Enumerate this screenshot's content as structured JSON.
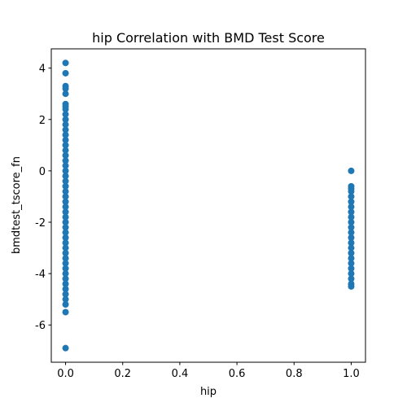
{
  "chart_data": {
    "type": "scatter",
    "title": "hip Correlation with BMD Test Score",
    "xlabel": "hip",
    "ylabel": "bmdtest_tscore_fn",
    "color": "#1f77b4",
    "x": [
      0,
      0,
      0,
      0,
      0,
      0,
      0,
      0,
      0,
      0,
      0,
      0,
      0,
      0,
      0,
      0,
      0,
      0,
      0,
      0,
      0,
      0,
      0,
      0,
      0,
      0,
      0,
      0,
      0,
      0,
      0,
      0,
      0,
      0,
      0,
      0,
      0,
      0,
      0,
      0,
      0,
      0,
      0,
      0,
      0,
      0,
      0,
      0,
      1,
      1,
      1,
      1,
      1,
      1,
      1,
      1,
      1,
      1,
      1,
      1,
      1,
      1,
      1,
      1,
      1,
      1,
      1,
      1,
      1,
      1,
      1
    ],
    "values": [
      4.2,
      3.8,
      3.3,
      3.2,
      3.0,
      2.6,
      2.5,
      2.4,
      2.2,
      2.0,
      1.8,
      1.6,
      1.4,
      1.2,
      1.0,
      0.8,
      0.6,
      0.4,
      0.2,
      0.0,
      -0.2,
      -0.4,
      -0.6,
      -0.8,
      -1.0,
      -1.2,
      -1.4,
      -1.6,
      -1.8,
      -2.0,
      -2.2,
      -2.4,
      -2.6,
      -2.8,
      -3.0,
      -3.2,
      -3.4,
      -3.6,
      -3.8,
      -4.0,
      -4.2,
      -4.4,
      -4.6,
      -4.8,
      -5.0,
      -5.2,
      -5.5,
      -6.9,
      0.0,
      -0.6,
      -0.7,
      -0.8,
      -1.0,
      -1.2,
      -1.4,
      -1.6,
      -1.8,
      -2.0,
      -2.2,
      -2.4,
      -2.6,
      -2.8,
      -3.0,
      -3.2,
      -3.4,
      -3.6,
      -3.8,
      -4.0,
      -4.2,
      -4.4,
      -4.5
    ],
    "xlim": [
      -0.05,
      1.05
    ],
    "ylim": [
      -7.45,
      4.75
    ],
    "xticks": [
      {
        "value": 0,
        "label": "0.0"
      },
      {
        "value": 0.2,
        "label": "0.2"
      },
      {
        "value": 0.4,
        "label": "0.4"
      },
      {
        "value": 0.6,
        "label": "0.6"
      },
      {
        "value": 0.8,
        "label": "0.8"
      },
      {
        "value": 1,
        "label": "1.0"
      }
    ],
    "yticks": [
      -6,
      -4,
      -2,
      0,
      2,
      4
    ]
  }
}
